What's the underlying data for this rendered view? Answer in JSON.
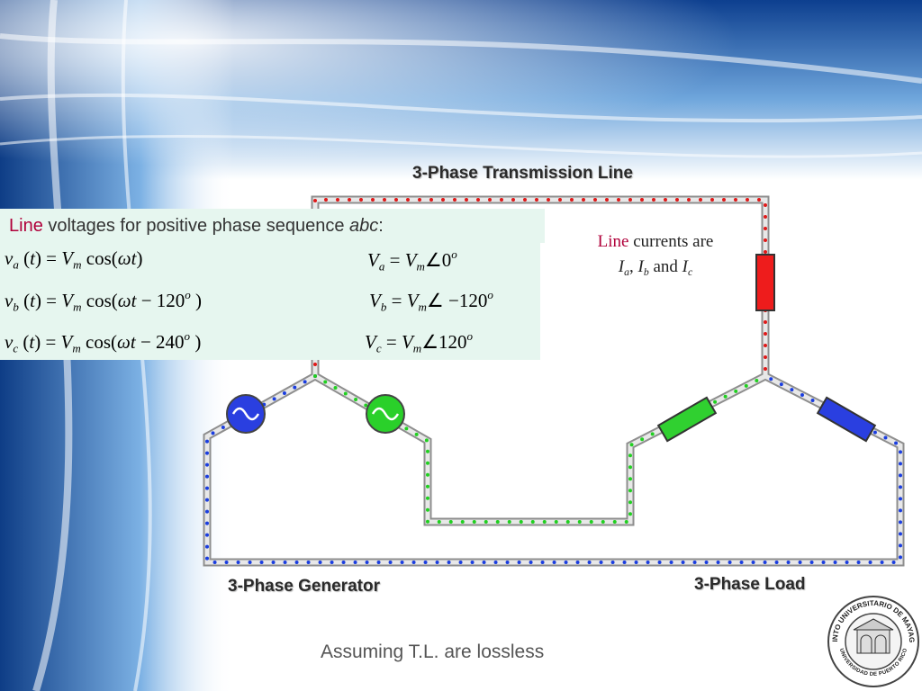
{
  "title": "3-Phase Transmission Line",
  "voltage_heading": [
    {
      "t": "Line",
      "s": "red"
    },
    {
      "t": " voltages for positive phase sequence ",
      "s": "normal"
    },
    {
      "t": "abc",
      "s": "italic"
    },
    {
      "t": ":",
      "s": "normal"
    }
  ],
  "equations": [
    {
      "time": [
        {
          "t": "v",
          "s": "i"
        },
        {
          "t": "a",
          "s": "sub"
        },
        {
          "t": " (",
          "s": "r"
        },
        {
          "t": "t",
          "s": "i"
        },
        {
          "t": ") = ",
          "s": "r"
        },
        {
          "t": "V",
          "s": "i"
        },
        {
          "t": "m",
          "s": "sub"
        },
        {
          "t": " cos(",
          "s": "r"
        },
        {
          "t": "ωt",
          "s": "i"
        },
        {
          "t": ")",
          "s": "r"
        }
      ],
      "phasor": [
        {
          "t": "V",
          "s": "i"
        },
        {
          "t": "a",
          "s": "sub"
        },
        {
          "t": " = ",
          "s": "r"
        },
        {
          "t": "V",
          "s": "i"
        },
        {
          "t": "m",
          "s": "sub"
        },
        {
          "t": "∠0",
          "s": "r"
        },
        {
          "t": "o",
          "s": "sup"
        }
      ]
    },
    {
      "time": [
        {
          "t": "v",
          "s": "i"
        },
        {
          "t": "b",
          "s": "sub"
        },
        {
          "t": " (",
          "s": "r"
        },
        {
          "t": "t",
          "s": "i"
        },
        {
          "t": ") = ",
          "s": "r"
        },
        {
          "t": "V",
          "s": "i"
        },
        {
          "t": "m",
          "s": "sub"
        },
        {
          "t": " cos(",
          "s": "r"
        },
        {
          "t": "ωt",
          "s": "i"
        },
        {
          "t": " − 120",
          "s": "r"
        },
        {
          "t": "o",
          "s": "sup"
        },
        {
          "t": " )",
          "s": "r"
        }
      ],
      "phasor": [
        {
          "t": "V",
          "s": "i"
        },
        {
          "t": "b",
          "s": "sub"
        },
        {
          "t": " = ",
          "s": "r"
        },
        {
          "t": "V",
          "s": "i"
        },
        {
          "t": "m",
          "s": "sub"
        },
        {
          "t": "∠ −120",
          "s": "r"
        },
        {
          "t": "o",
          "s": "sup"
        }
      ]
    },
    {
      "time": [
        {
          "t": "v",
          "s": "i"
        },
        {
          "t": "c",
          "s": "sub"
        },
        {
          "t": " (",
          "s": "r"
        },
        {
          "t": "t",
          "s": "i"
        },
        {
          "t": ") = ",
          "s": "r"
        },
        {
          "t": "V",
          "s": "i"
        },
        {
          "t": "m",
          "s": "sub"
        },
        {
          "t": " cos(",
          "s": "r"
        },
        {
          "t": "ωt",
          "s": "i"
        },
        {
          "t": " − 240",
          "s": "r"
        },
        {
          "t": "o",
          "s": "sup"
        },
        {
          "t": " )",
          "s": "r"
        }
      ],
      "phasor": [
        {
          "t": "V",
          "s": "i"
        },
        {
          "t": "c",
          "s": "sub"
        },
        {
          "t": " = ",
          "s": "r"
        },
        {
          "t": "V",
          "s": "i"
        },
        {
          "t": "m",
          "s": "sub"
        },
        {
          "t": "∠120",
          "s": "r"
        },
        {
          "t": "o",
          "s": "sup"
        }
      ]
    }
  ],
  "currents_note": [
    [
      {
        "t": "Line",
        "s": "red"
      },
      {
        "t": " currents are",
        "s": "normal"
      }
    ],
    [
      {
        "t": "I",
        "s": "i"
      },
      {
        "t": "a",
        "s": "sub"
      },
      {
        "t": ", ",
        "s": "normal"
      },
      {
        "t": "I",
        "s": "i"
      },
      {
        "t": "b",
        "s": "sub"
      },
      {
        "t": " and ",
        "s": "normal"
      },
      {
        "t": "I",
        "s": "i"
      },
      {
        "t": "c",
        "s": "sub"
      }
    ]
  ],
  "labels": {
    "generator": "3-Phase Generator",
    "load": "3-Phase Load"
  },
  "footer": "Assuming T.L. are lossless",
  "logo": {
    "top": "RECINTO UNIVERSITARIO DE MAYAGUEZ",
    "bottom": "UNIVERSIDAD DE PUERTO RICO"
  }
}
